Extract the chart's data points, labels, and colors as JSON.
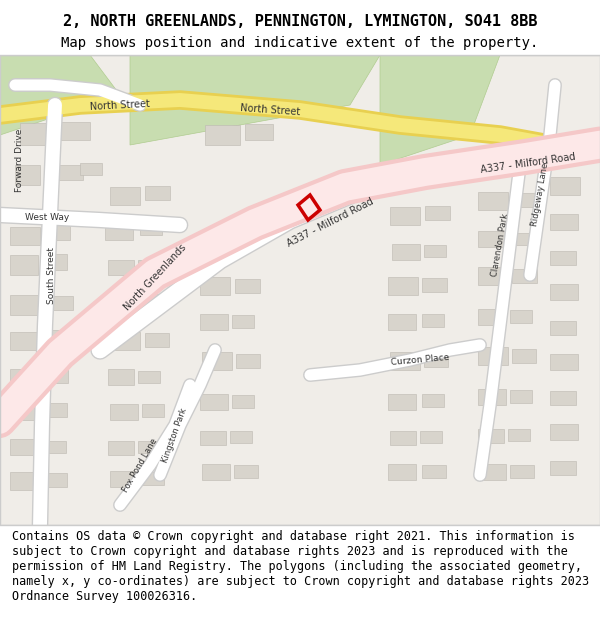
{
  "title_line1": "2, NORTH GREENLANDS, PENNINGTON, LYMINGTON, SO41 8BB",
  "title_line2": "Map shows position and indicative extent of the property.",
  "footer_text": "Contains OS data © Crown copyright and database right 2021. This information is subject to Crown copyright and database rights 2023 and is reproduced with the permission of HM Land Registry. The polygons (including the associated geometry, namely x, y co-ordinates) are subject to Crown copyright and database rights 2023 Ordnance Survey 100026316.",
  "title_fontsize": 11,
  "subtitle_fontsize": 10,
  "footer_fontsize": 8.5,
  "fig_width": 6.0,
  "fig_height": 6.25,
  "map_bg": "#f0ede8",
  "road_pink": "#f5c8c8",
  "road_pink_dark": "#f0a0a0",
  "road_yellow": "#f5e87a",
  "road_yellow_dark": "#e8d050",
  "road_white": "#ffffff",
  "road_outline": "#cccccc",
  "green_area": "#c8ddb0",
  "green_dark": "#b0cc90",
  "building_gray": "#d8d4cc",
  "building_outline": "#bcb8b0",
  "highlight_red": "#cc0000",
  "highlight_pink": "#ffaaaa",
  "text_dark": "#555555",
  "border_color": "#cccccc",
  "header_bg": "#ffffff",
  "footer_bg": "#ffffff"
}
